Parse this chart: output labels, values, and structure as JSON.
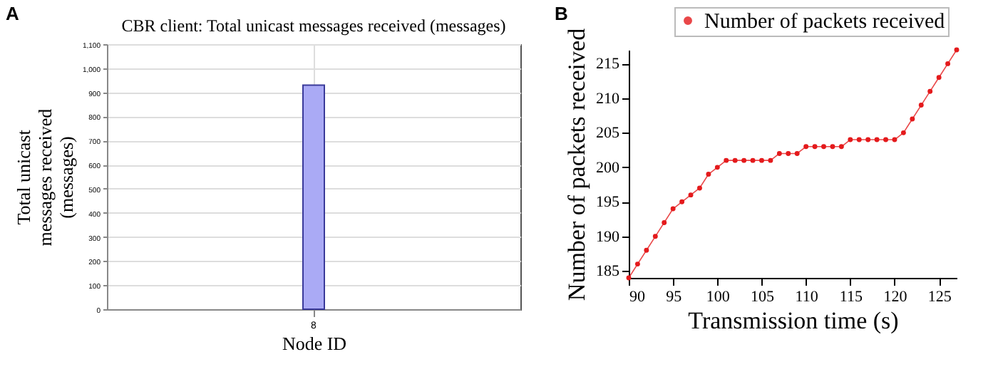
{
  "chart_data": [
    {
      "type": "bar",
      "title": "CBR client: Total unicast messages received (messages)",
      "xlabel": "Node ID",
      "ylabel": "Total unicast messages received (messages)",
      "annotations": [
        "A"
      ],
      "categories": [
        "8"
      ],
      "values": [
        930
      ],
      "color": "#aaaaf5",
      "ylim": [
        0,
        1100
      ],
      "yticks": [
        0,
        100,
        200,
        300,
        400,
        500,
        600,
        700,
        800,
        900,
        {
          "value": 1000,
          "label": "1,000"
        },
        {
          "value": 1100,
          "label": "1,100"
        }
      ],
      "grid": true
    },
    {
      "type": "line",
      "xlabel": "Transmission time (s)",
      "ylabel": "Number of packets received",
      "annotations": [
        "B"
      ],
      "legend": "top right",
      "marker": "circle",
      "line_style": "solid",
      "xlim": [
        90,
        127
      ],
      "ylim": [
        184,
        217
      ],
      "xticks": [
        90,
        95,
        100,
        105,
        110,
        115,
        120,
        125
      ],
      "yticks": [
        185,
        190,
        195,
        200,
        205,
        210,
        215
      ],
      "x": [
        90,
        91,
        92,
        93,
        94,
        95,
        96,
        97,
        98,
        99,
        100,
        101,
        102,
        103,
        104,
        105,
        106,
        107,
        108,
        109,
        110,
        111,
        112,
        113,
        114,
        115,
        116,
        117,
        118,
        119,
        120,
        121,
        122,
        123,
        124,
        125,
        126,
        127
      ],
      "series": [
        {
          "name": "Number of packets received",
          "color": "#e41a1c",
          "values": [
            184,
            186,
            188,
            190,
            192,
            194,
            195,
            196,
            197,
            199,
            200,
            201,
            201,
            201,
            201,
            201,
            201,
            202,
            202,
            202,
            203,
            203,
            203,
            203,
            203,
            204,
            204,
            204,
            204,
            204,
            204,
            205,
            207,
            209,
            211,
            213,
            215,
            217
          ]
        }
      ]
    }
  ]
}
